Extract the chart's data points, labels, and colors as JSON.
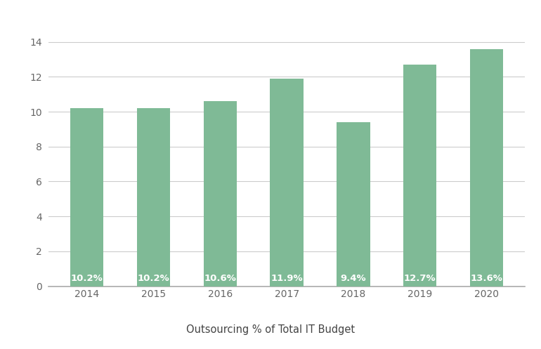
{
  "categories": [
    "2014",
    "2015",
    "2016",
    "2017",
    "2018",
    "2019",
    "2020"
  ],
  "values": [
    10.2,
    10.2,
    10.6,
    11.9,
    9.4,
    12.7,
    13.6
  ],
  "bar_color": "#7fba96",
  "label_color": "#ffffff",
  "label_fontsize": 9.5,
  "label_fontweight": "bold",
  "xlabel": "Outsourcing % of Total IT Budget",
  "xlabel_fontsize": 10.5,
  "ylim": [
    0,
    14.8
  ],
  "yticks": [
    0,
    2,
    4,
    6,
    8,
    10,
    12,
    14
  ],
  "grid_color": "#cccccc",
  "background_color": "#ffffff",
  "bar_width": 0.5,
  "tick_label_color": "#666666",
  "tick_fontsize": 10,
  "spine_color": "#aaaaaa"
}
